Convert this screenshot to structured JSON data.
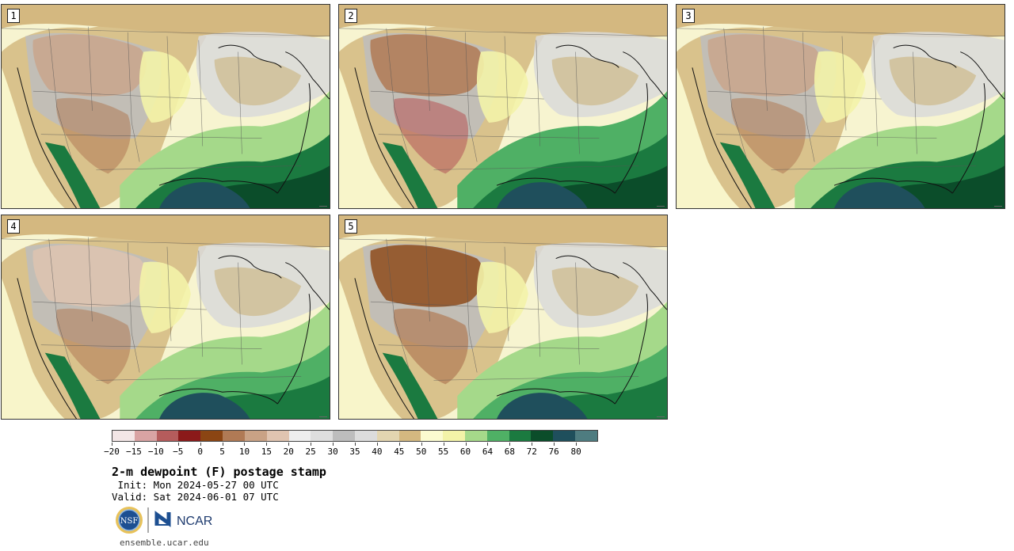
{
  "product_title": "2-m dewpoint (F) postage stamp",
  "init_line": " Init: Mon 2024-05-27 00 UTC",
  "valid_line": "Valid: Sat 2024-06-01 07 UTC",
  "footer_url": "ensemble.ucar.edu",
  "logos": {
    "nsf_text": "NSF",
    "ncar_text": "NCAR"
  },
  "panels": [
    {
      "number": "1",
      "regime": "moderate-moist"
    },
    {
      "number": "2",
      "regime": "dry-west"
    },
    {
      "number": "3",
      "regime": "moderate-moist"
    },
    {
      "number": "4",
      "regime": "moderate"
    },
    {
      "number": "5",
      "regime": "very-dry-west"
    }
  ],
  "colorbar": {
    "unit": "F",
    "tick_labels": [
      "−20",
      "−15",
      "−10",
      "−5",
      "0",
      "5",
      "10",
      "15",
      "20",
      "25",
      "30",
      "35",
      "40",
      "45",
      "50",
      "55",
      "60",
      "64",
      "68",
      "72",
      "76",
      "80"
    ],
    "colors": [
      "#f3e6e6",
      "#d9a3a3",
      "#b55c5c",
      "#8b1a1a",
      "#8b4513",
      "#b07a55",
      "#c9a285",
      "#e0c4b0",
      "#eeeeee",
      "#dedede",
      "#bdbdbd",
      "#dcdcdc",
      "#e3d5b0",
      "#d4b880",
      "#fbfbd0",
      "#f3f3a8",
      "#a5d98a",
      "#4fb065",
      "#1b7a40",
      "#0b4d2a",
      "#1f4f5c",
      "#4e7c80"
    ]
  }
}
